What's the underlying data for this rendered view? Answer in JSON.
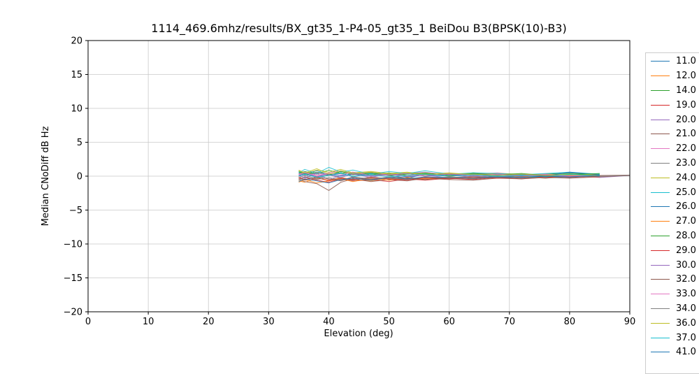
{
  "title": "1114_469.6mhz/results/BX_gt35_1-P4-05_gt35_1 BeiDou B3(BPSK(10)-B3)",
  "chart_data": {
    "type": "line",
    "title": "1114_469.6mhz/results/BX_gt35_1-P4-05_gt35_1 BeiDou B3(BPSK(10)-B3)",
    "xlabel": "Elevation (deg)",
    "ylabel": "Median CNoDiff dB Hz",
    "xlim": [
      0,
      90
    ],
    "ylim": [
      -20,
      20
    ],
    "x_ticks": [
      0,
      10,
      20,
      30,
      40,
      50,
      60,
      70,
      80,
      90
    ],
    "x_tick_labels": [
      "0",
      "10",
      "20",
      "30",
      "40",
      "50",
      "60",
      "70",
      "80",
      "90"
    ],
    "y_ticks": [
      20,
      15,
      10,
      5,
      0,
      -5,
      -10,
      -15,
      -20
    ],
    "y_tick_labels": [
      "20",
      "15",
      "10",
      "5",
      "0",
      "−5",
      "−10",
      "−15",
      "−20"
    ],
    "grid": true,
    "grid_color": "#c8c8c8",
    "legend_position": "outside-right",
    "x": [
      35,
      36,
      38,
      40,
      42,
      44,
      47,
      50,
      53,
      56,
      60,
      64,
      68,
      72,
      76,
      80,
      85,
      90
    ],
    "series": [
      {
        "label": "11.0",
        "color": "#1f77b4",
        "x_max": 85,
        "values": [
          0.6,
          0.3,
          0.8,
          0.2,
          0.5,
          -0.1,
          0.4,
          0.1,
          -0.3,
          0.3,
          0.0,
          0.4,
          -0.2,
          0.1,
          0.3,
          0.5,
          0.2,
          0.1
        ]
      },
      {
        "label": "12.0",
        "color": "#ff7f0e",
        "x_max": 85,
        "values": [
          -0.7,
          -0.9,
          -0.3,
          -0.6,
          -0.2,
          -0.5,
          -0.7,
          -0.3,
          -0.5,
          -0.1,
          -0.4,
          -0.2,
          -0.3,
          0.0,
          -0.2,
          0.1,
          0.0,
          0.1
        ]
      },
      {
        "label": "14.0",
        "color": "#2ca02c",
        "x_max": 85,
        "values": [
          0.4,
          0.7,
          0.3,
          0.9,
          0.4,
          0.6,
          0.2,
          0.5,
          0.1,
          0.4,
          0.2,
          0.5,
          0.3,
          0.1,
          0.3,
          0.4,
          0.3,
          0.2
        ]
      },
      {
        "label": "19.0",
        "color": "#d62728",
        "x_max": 85,
        "values": [
          -0.4,
          -0.2,
          -0.6,
          -0.9,
          -0.4,
          -0.7,
          -0.5,
          -0.8,
          -0.4,
          -0.6,
          -0.3,
          -0.5,
          -0.2,
          -0.4,
          -0.1,
          -0.2,
          0.0,
          0.1
        ]
      },
      {
        "label": "20.0",
        "color": "#9467bd",
        "x_max": 90,
        "values": [
          0.2,
          -0.3,
          0.4,
          -0.5,
          0.1,
          0.3,
          -0.2,
          0.4,
          -0.1,
          0.2,
          -0.3,
          0.1,
          -0.2,
          0.3,
          -0.1,
          0.1,
          -0.2,
          0.1
        ]
      },
      {
        "label": "21.0",
        "color": "#8c564b",
        "x_max": 90,
        "values": [
          -0.5,
          -0.8,
          -1.1,
          -2.1,
          -0.9,
          -0.4,
          -0.8,
          -0.5,
          -0.7,
          -0.3,
          -0.5,
          -0.6,
          -0.3,
          -0.4,
          -0.2,
          -0.3,
          -0.1,
          0.1
        ]
      },
      {
        "label": "22.0",
        "color": "#e377c2",
        "x_max": 85,
        "values": [
          0.3,
          0.6,
          0.1,
          0.5,
          0.8,
          0.3,
          0.6,
          0.2,
          0.4,
          0.6,
          0.2,
          0.3,
          0.5,
          0.2,
          0.3,
          0.1,
          0.2,
          0.1
        ]
      },
      {
        "label": "23.0",
        "color": "#7f7f7f",
        "x_max": 85,
        "values": [
          -0.2,
          0.1,
          -0.4,
          0.2,
          -0.3,
          -0.6,
          -0.1,
          -0.4,
          -0.2,
          -0.5,
          -0.1,
          -0.3,
          0.0,
          -0.2,
          0.1,
          -0.1,
          0.1,
          0.0
        ]
      },
      {
        "label": "24.0",
        "color": "#bcbd22",
        "x_max": 85,
        "values": [
          0.8,
          0.4,
          0.9,
          0.6,
          1.0,
          0.5,
          0.7,
          0.4,
          0.6,
          0.3,
          0.5,
          0.2,
          0.4,
          0.3,
          0.2,
          0.3,
          0.2,
          0.1
        ]
      },
      {
        "label": "25.0",
        "color": "#17becf",
        "x_max": 85,
        "values": [
          0.5,
          1.0,
          0.4,
          1.3,
          0.6,
          0.9,
          0.3,
          0.7,
          0.4,
          0.8,
          0.3,
          0.5,
          0.4,
          0.2,
          0.4,
          0.6,
          0.3,
          0.1
        ]
      },
      {
        "label": "26.0",
        "color": "#1f77b4",
        "x_max": 85,
        "values": [
          0.1,
          0.4,
          -0.1,
          0.3,
          0.0,
          0.4,
          0.1,
          0.3,
          -0.1,
          0.2,
          0.0,
          0.2,
          0.1,
          0.3,
          0.0,
          0.6,
          0.2,
          0.1
        ]
      },
      {
        "label": "27.0",
        "color": "#ff7f0e",
        "x_max": 85,
        "values": [
          -0.9,
          -0.5,
          -1.0,
          -0.7,
          -0.4,
          -0.8,
          -0.3,
          -0.6,
          -0.2,
          -0.4,
          -0.1,
          -0.3,
          -0.2,
          -0.1,
          -0.3,
          0.0,
          -0.1,
          0.0
        ]
      },
      {
        "label": "28.0",
        "color": "#2ca02c",
        "x_max": 85,
        "values": [
          0.7,
          0.2,
          0.6,
          0.1,
          0.7,
          0.2,
          0.5,
          0.1,
          0.3,
          0.5,
          0.1,
          0.4,
          0.2,
          0.4,
          0.1,
          0.2,
          0.4,
          0.2
        ]
      },
      {
        "label": "29.0",
        "color": "#d62728",
        "x_max": 85,
        "values": [
          -0.1,
          -0.5,
          -0.2,
          -0.7,
          -0.3,
          -0.5,
          -0.2,
          -0.4,
          -0.6,
          -0.2,
          -0.4,
          -0.1,
          -0.3,
          -0.1,
          -0.2,
          0.0,
          -0.1,
          0.0
        ]
      },
      {
        "label": "30.0",
        "color": "#9467bd",
        "x_max": 85,
        "values": [
          0.4,
          0.0,
          0.5,
          0.2,
          -0.2,
          0.3,
          0.0,
          0.2,
          0.4,
          0.0,
          0.3,
          -0.1,
          0.2,
          0.0,
          0.2,
          -0.1,
          0.1,
          0.0
        ]
      },
      {
        "label": "32.0",
        "color": "#8c564b",
        "x_max": 90,
        "values": [
          -0.3,
          -0.6,
          -0.1,
          -0.4,
          -0.7,
          -0.2,
          -0.5,
          -0.1,
          -0.3,
          -0.5,
          -0.2,
          -0.4,
          -0.1,
          -0.3,
          0.0,
          -0.2,
          0.1,
          0.15
        ]
      },
      {
        "label": "33.0",
        "color": "#e377c2",
        "x_max": 85,
        "values": [
          0.2,
          0.5,
          0.0,
          0.4,
          0.2,
          0.6,
          0.1,
          0.3,
          0.0,
          0.2,
          0.4,
          0.1,
          0.3,
          0.1,
          0.2,
          0.0,
          0.1,
          0.0
        ]
      },
      {
        "label": "34.0",
        "color": "#7f7f7f",
        "x_max": 90,
        "values": [
          -0.6,
          -0.1,
          -0.5,
          -0.2,
          -0.6,
          -0.1,
          -0.4,
          -0.2,
          -0.5,
          -0.1,
          -0.3,
          0.0,
          -0.2,
          -0.1,
          -0.3,
          -0.1,
          0.0,
          0.1
        ]
      },
      {
        "label": "36.0",
        "color": "#bcbd22",
        "x_max": 85,
        "values": [
          0.9,
          0.5,
          1.1,
          0.3,
          0.8,
          0.4,
          0.6,
          0.3,
          0.5,
          0.2,
          0.4,
          0.3,
          0.1,
          0.3,
          0.1,
          0.2,
          0.1,
          0.1
        ]
      },
      {
        "label": "37.0",
        "color": "#17becf",
        "x_max": 85,
        "values": [
          0.0,
          0.3,
          -0.2,
          0.1,
          0.4,
          0.0,
          0.2,
          -0.1,
          0.1,
          0.3,
          0.0,
          0.2,
          0.0,
          0.1,
          -0.1,
          0.3,
          0.0,
          0.1
        ]
      },
      {
        "label": "41.0",
        "color": "#1f77b4",
        "x_max": 85,
        "values": [
          -0.8,
          -0.4,
          -0.7,
          -1.0,
          -0.5,
          -0.3,
          -0.6,
          -0.2,
          -0.4,
          -0.1,
          -0.2,
          -0.3,
          -0.1,
          -0.2,
          0.0,
          -0.1,
          0.1,
          0.0
        ]
      }
    ]
  },
  "legend": {
    "frame_color": "#cccccc",
    "clipped_last_entry": true
  },
  "style": {
    "spine_color": "#000000",
    "line_opacity": 0.85
  }
}
